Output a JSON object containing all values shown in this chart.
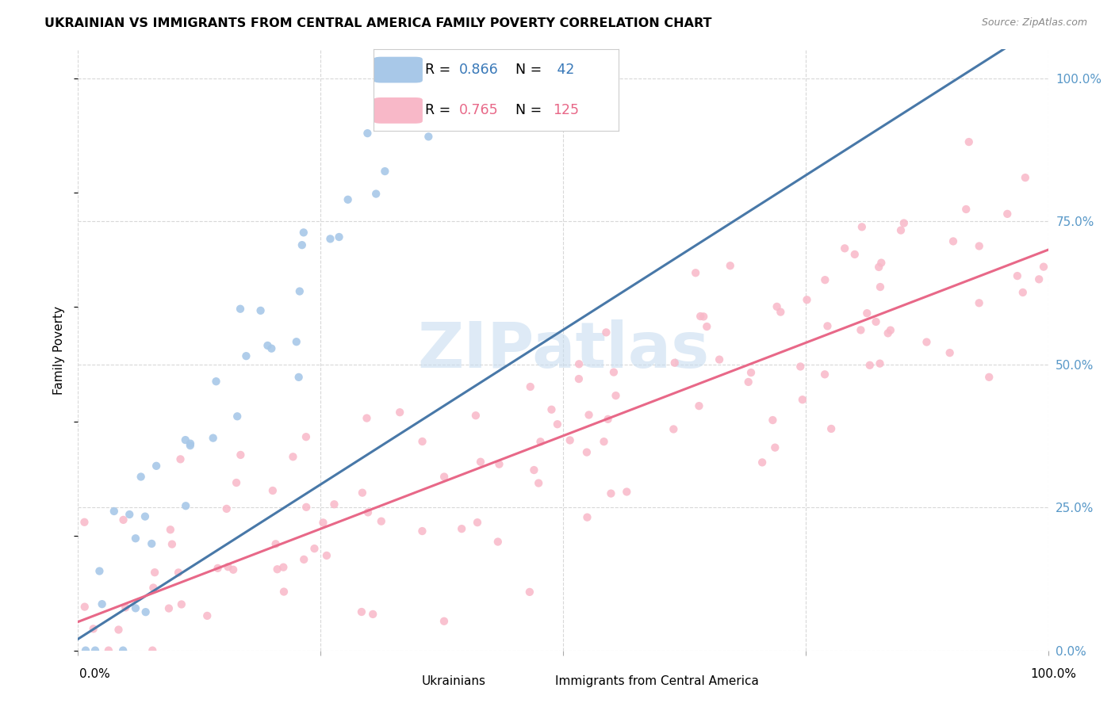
{
  "title": "UKRAINIAN VS IMMIGRANTS FROM CENTRAL AMERICA FAMILY POVERTY CORRELATION CHART",
  "source": "Source: ZipAtlas.com",
  "ylabel": "Family Poverty",
  "ytick_values": [
    0,
    25,
    50,
    75,
    100
  ],
  "color_blue": "#a8c8e8",
  "color_blue_line": "#4878a8",
  "color_pink": "#f8b8c8",
  "color_pink_line": "#e86888",
  "color_blue_dark": "#3878b8",
  "color_right_axis": "#5898c8",
  "watermark_color": "#c8ddf0",
  "seed_blue": 42,
  "seed_pink": 99,
  "n_blue": 42,
  "n_pink": 125,
  "R_blue": 0.866,
  "R_pink": 0.765,
  "xmin": 0,
  "xmax": 100,
  "ymin": 0,
  "ymax": 105,
  "blue_x_max": 38,
  "blue_slope": 2.7,
  "blue_intercept": 2.0,
  "pink_slope": 0.65,
  "pink_intercept": 5.0
}
